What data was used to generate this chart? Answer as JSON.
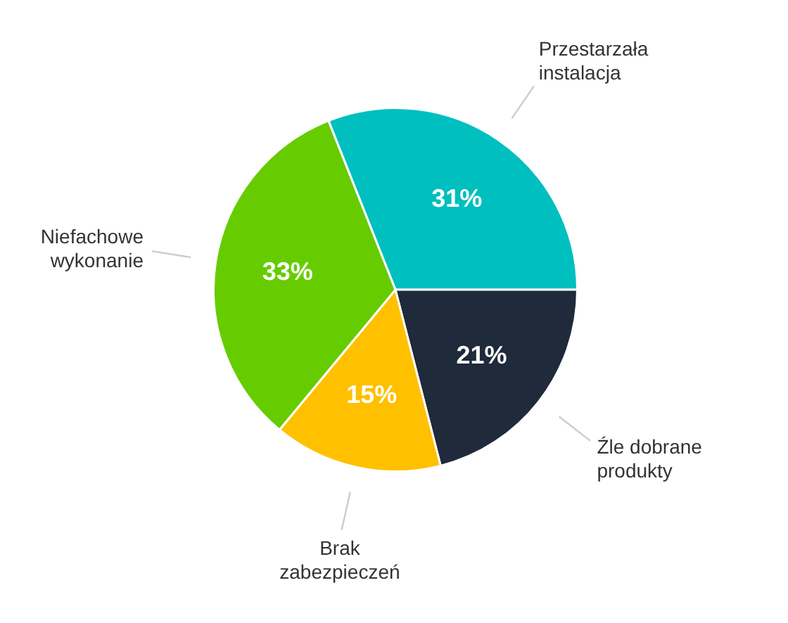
{
  "chart_data": {
    "type": "pie",
    "categories": [
      "Przestarzała instalacja",
      "Źle dobrane produkty",
      "Brak zabezpieczeń",
      "Niefachowe wykonanie"
    ],
    "values": [
      31,
      21,
      15,
      33
    ],
    "value_labels": [
      "31%",
      "21%",
      "15%",
      "33%"
    ],
    "colors": [
      "#00bfbf",
      "#1f2a3a",
      "#ffc000",
      "#66cc00"
    ]
  }
}
